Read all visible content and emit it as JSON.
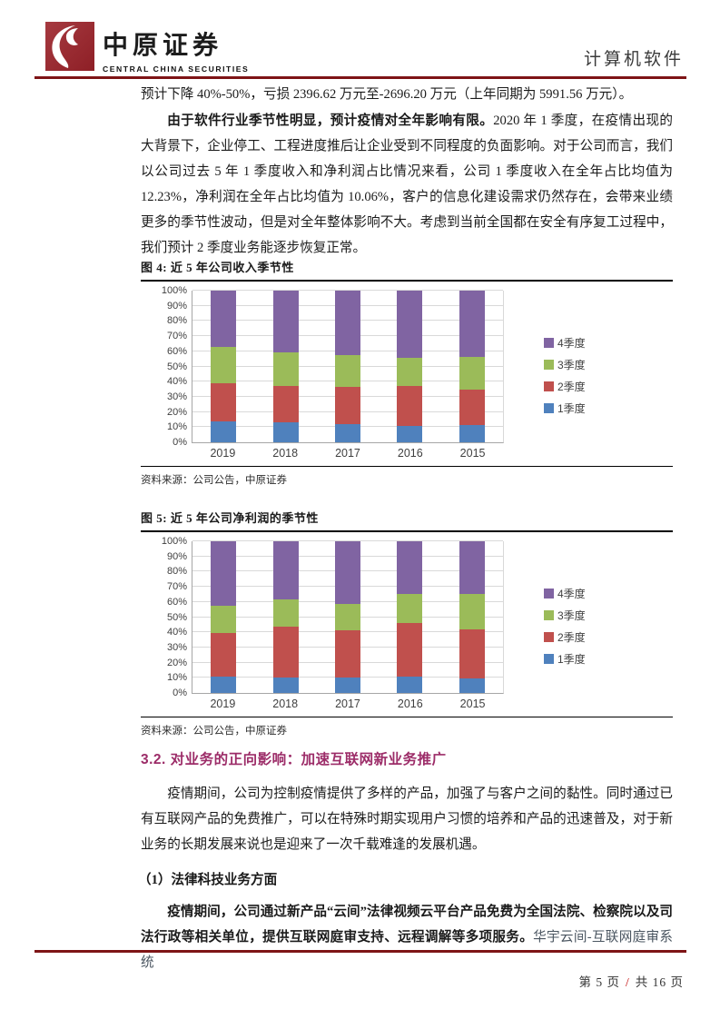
{
  "header": {
    "logo_cn": "中原证券",
    "logo_en": "CENTRAL CHINA SECURITIES",
    "category": "计算机软件"
  },
  "body": {
    "p1": "预计下降 40%-50%，亏损 2396.62 万元至-2696.20 万元（上年同期为 5991.56 万元）。",
    "p2_bold": "由于软件行业季节性明显，预计疫情对全年影响有限。",
    "p2_rest": "2020 年 1 季度，在疫情出现的大背景下，企业停工、工程进度推后让企业受到不同程度的负面影响。对于公司而言，我们以公司过去 5 年 1 季度收入和净利润占比情况来看，公司 1 季度收入在全年占比均值为 12.23%，净利润在全年占比均值为 10.06%，客户的信息化建设需求仍然存在，会带来业绩更多的季节性波动，但是对全年整体影响不大。考虑到当前全国都在安全有序复工过程中，我们预计 2 季度业务能逐步恢复正常。",
    "section_heading": "3.2. 对业务的正向影响：加速互联网新业务推广",
    "p3": "疫情期间，公司为控制疫情提供了多样的产品，加强了与客户之间的黏性。同时通过已有互联网产品的免费推广，可以在特殊时期实现用户习惯的培养和产品的迅速普及，对于新业务的长期发展来说也是迎来了一次千载难逢的发展机遇。",
    "sub_heading": "（1）法律科技业务方面",
    "p4_bold": "疫情期间，公司通过新产品“云间”法律视频云平台产品免费为全国法院、检察院以及司法行政等相关单位，提供互联网庭审支持、远程调解等多项服务。",
    "p4_rest": "华宇云间-互联网庭审系统"
  },
  "figures": [
    {
      "title": "图 4: 近 5 年公司收入季节性",
      "source": "资料来源：公司公告，中原证券"
    },
    {
      "title": "图 5: 近 5 年公司净利润的季节性",
      "source": "资料来源：公司公告，中原证券"
    }
  ],
  "footer": {
    "page_left": "第 5 页",
    "separator": "/",
    "page_right": "共 16 页"
  },
  "chart_data": [
    {
      "type": "bar",
      "stacked": true,
      "title": "图 4: 近 5 年公司收入季节性",
      "categories": [
        "2019",
        "2018",
        "2017",
        "2016",
        "2015"
      ],
      "series": [
        {
          "name": "1季度",
          "color": "#4F81BD",
          "values": [
            13.5,
            13,
            12,
            11,
            11.5
          ]
        },
        {
          "name": "2季度",
          "color": "#C0504D",
          "values": [
            25.5,
            24,
            24.5,
            26,
            23.5
          ]
        },
        {
          "name": "3季度",
          "color": "#9BBB59",
          "values": [
            24,
            22,
            21,
            19,
            21.5
          ]
        },
        {
          "name": "4季度",
          "color": "#8064A2",
          "values": [
            37,
            41,
            42.5,
            44,
            43.5
          ]
        }
      ],
      "ylabel_format": "percent",
      "ylim": [
        0,
        100
      ],
      "ytick_step": 10,
      "grid": true,
      "legend_position": "right"
    },
    {
      "type": "bar",
      "stacked": true,
      "title": "图 5: 近 5 年公司净利润的季节性",
      "categories": [
        "2019",
        "2018",
        "2017",
        "2016",
        "2015"
      ],
      "series": [
        {
          "name": "1季度",
          "color": "#4F81BD",
          "values": [
            10.5,
            10,
            10,
            10.5,
            9.5
          ]
        },
        {
          "name": "2季度",
          "color": "#C0504D",
          "values": [
            29,
            33.5,
            31.5,
            35.5,
            32.5
          ]
        },
        {
          "name": "3季度",
          "color": "#9BBB59",
          "values": [
            18,
            18,
            17.5,
            19.5,
            23.5
          ]
        },
        {
          "name": "4季度",
          "color": "#8064A2",
          "values": [
            42.5,
            38.5,
            41,
            34.5,
            34.5
          ]
        }
      ],
      "ylabel_format": "percent",
      "ylim": [
        0,
        100
      ],
      "ytick_step": 10,
      "grid": true,
      "legend_position": "right"
    }
  ],
  "colors": {
    "rule_maroon": "#7e1416",
    "logo_red": "#9e2a30",
    "section_heading": "#9c2c68",
    "footer_slash": "#c00000",
    "q1_blue": "#4F81BD",
    "q2_red": "#C0504D",
    "q3_green": "#9BBB59",
    "q4_purple": "#8064A2"
  }
}
